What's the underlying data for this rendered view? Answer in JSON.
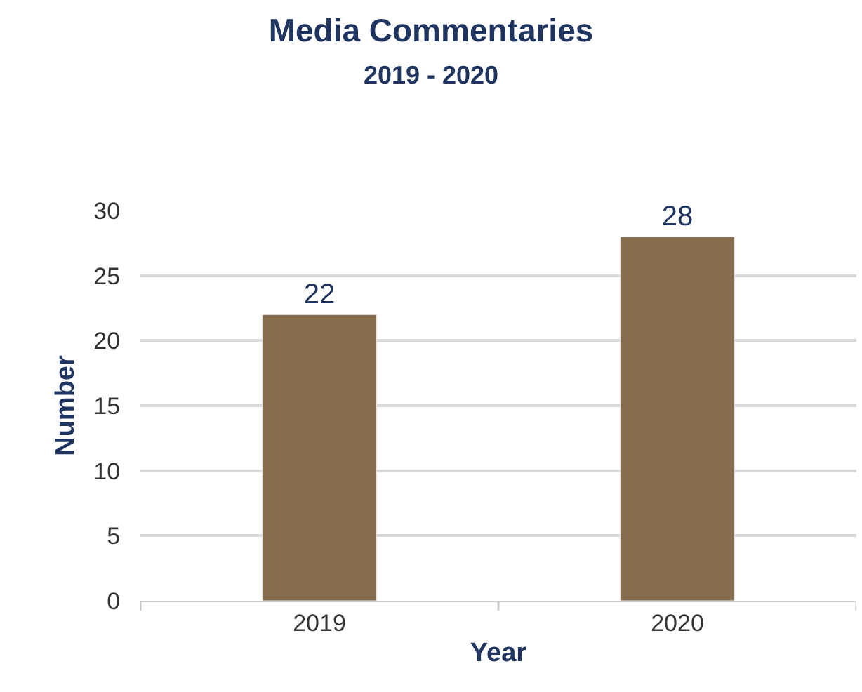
{
  "chart_data": {
    "type": "bar",
    "title": "Media Commentaries",
    "subtitle": "2019 - 2020",
    "xlabel": "Year",
    "ylabel": "Number",
    "categories": [
      "2019",
      "2020"
    ],
    "values": [
      22,
      28
    ],
    "color": "#856d4d",
    "ylim": [
      0,
      30
    ],
    "yticks": [
      0,
      5,
      10,
      15,
      20,
      25,
      30
    ],
    "grid": "y",
    "data_labels": true,
    "legend": false
  }
}
